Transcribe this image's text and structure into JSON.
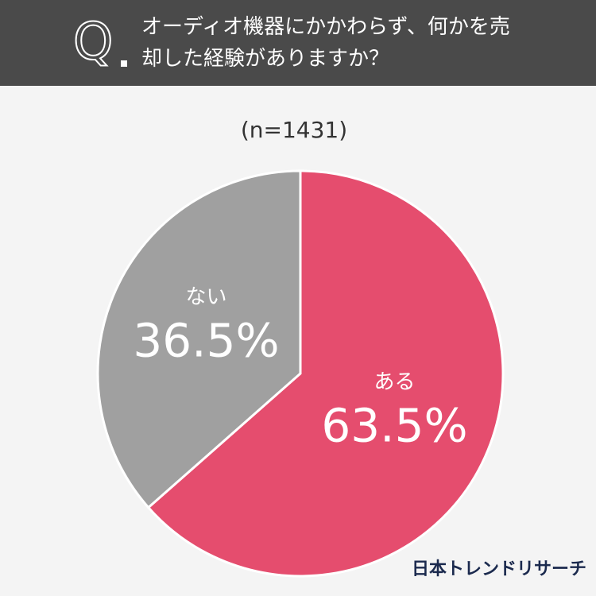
{
  "chart_data": {
    "type": "pie",
    "question_mark": "Q",
    "title": "オーディオ機器にかかわらず、何かを売却した経験がありますか？",
    "subtitle": "(n=1431)",
    "categories": [
      "ある",
      "ない"
    ],
    "values": [
      63.5,
      36.5
    ],
    "value_labels": [
      "63.5%",
      "36.5%"
    ],
    "colors": [
      "#e54d6e",
      "#a0a0a0"
    ],
    "source": "日本トレンドリサーチ"
  }
}
